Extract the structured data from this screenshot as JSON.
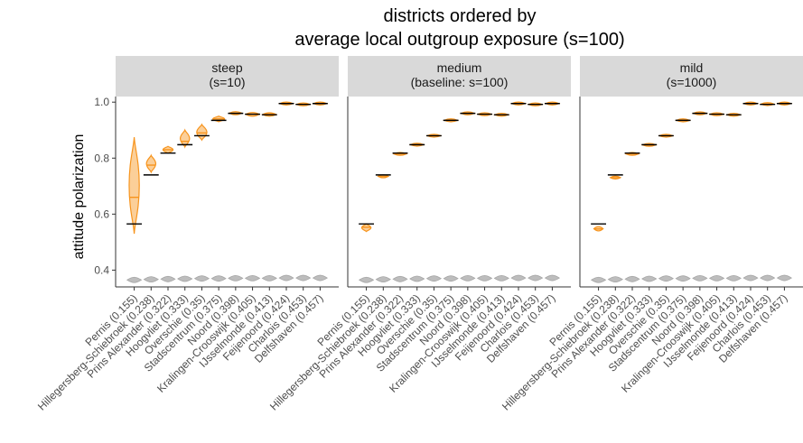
{
  "chart_data": {
    "type": "violin",
    "title": [
      "districts ordered by",
      "average local outgroup exposure (s=100)"
    ],
    "ylabel": "attitude polarization",
    "xlabel": "",
    "ylim": [
      0.34,
      1.02
    ],
    "yticks": [
      "0.4",
      "0.6",
      "0.8",
      "1.0"
    ],
    "colors": {
      "main": "#f7941d",
      "baseline": "#bdbdbd",
      "reference": "#000000",
      "strip": "#d9d9d9"
    },
    "categories": [
      "Pernis (0.155)",
      "Hillegersberg-Schiebroek (0.238)",
      "Prins Alexander (0.322)",
      "Hoogvliet (0.333)",
      "Overschie (0.35)",
      "Stadscentrum (0.375)",
      "Noord (0.398)",
      "Kralingen-Crooswijk (0.405)",
      "IJsselmonde (0.413)",
      "Feijenoord (0.424)",
      "Charlois (0.453)",
      "Delfshaven (0.457)"
    ],
    "reference": [
      0.565,
      0.74,
      0.818,
      0.848,
      0.88,
      0.935,
      0.96,
      0.957,
      0.955,
      0.995,
      0.992,
      0.995
    ],
    "baseline_violin": [
      0.365,
      0.367,
      0.368,
      0.369,
      0.37,
      0.37,
      0.371,
      0.371,
      0.371,
      0.372,
      0.372,
      0.372
    ],
    "panels": [
      {
        "strip": [
          "steep",
          "(s=10)"
        ],
        "violins": [
          {
            "median": 0.66,
            "min": 0.53,
            "max": 0.875,
            "width": 0.6
          },
          {
            "median": 0.775,
            "min": 0.75,
            "max": 0.81,
            "width": 0.55
          },
          {
            "median": 0.83,
            "min": 0.818,
            "max": 0.842,
            "width": 0.6
          },
          {
            "median": 0.86,
            "min": 0.84,
            "max": 0.9,
            "width": 0.55
          },
          {
            "median": 0.89,
            "min": 0.865,
            "max": 0.92,
            "width": 0.6
          },
          {
            "median": 0.94,
            "min": 0.93,
            "max": 0.95,
            "width": 0.7
          },
          {
            "median": 0.96,
            "min": 0.955,
            "max": 0.966,
            "width": 0.75
          },
          {
            "median": 0.957,
            "min": 0.95,
            "max": 0.963,
            "width": 0.8
          },
          {
            "median": 0.957,
            "min": 0.95,
            "max": 0.962,
            "width": 0.8
          },
          {
            "median": 0.995,
            "min": 0.992,
            "max": 0.998,
            "width": 0.8
          },
          {
            "median": 0.992,
            "min": 0.988,
            "max": 0.996,
            "width": 0.8
          },
          {
            "median": 0.995,
            "min": 0.992,
            "max": 0.998,
            "width": 0.8
          }
        ]
      },
      {
        "strip": [
          "medium",
          "(baseline: s=100)"
        ],
        "violins": [
          {
            "median": 0.553,
            "min": 0.538,
            "max": 0.565,
            "width": 0.55
          },
          {
            "median": 0.735,
            "min": 0.73,
            "max": 0.74,
            "width": 0.6
          },
          {
            "median": 0.815,
            "min": 0.812,
            "max": 0.818,
            "width": 0.75
          },
          {
            "median": 0.848,
            "min": 0.845,
            "max": 0.851,
            "width": 0.8
          },
          {
            "median": 0.88,
            "min": 0.877,
            "max": 0.883,
            "width": 0.8
          },
          {
            "median": 0.935,
            "min": 0.933,
            "max": 0.937,
            "width": 0.8
          },
          {
            "median": 0.96,
            "min": 0.958,
            "max": 0.962,
            "width": 0.8
          },
          {
            "median": 0.957,
            "min": 0.955,
            "max": 0.959,
            "width": 0.8
          },
          {
            "median": 0.955,
            "min": 0.953,
            "max": 0.957,
            "width": 0.8
          },
          {
            "median": 0.995,
            "min": 0.993,
            "max": 0.997,
            "width": 0.8
          },
          {
            "median": 0.992,
            "min": 0.99,
            "max": 0.994,
            "width": 0.8
          },
          {
            "median": 0.995,
            "min": 0.993,
            "max": 0.997,
            "width": 0.8
          }
        ]
      },
      {
        "strip": [
          "mild",
          "(s=1000)"
        ],
        "violins": [
          {
            "median": 0.547,
            "min": 0.54,
            "max": 0.555,
            "width": 0.55
          },
          {
            "median": 0.73,
            "min": 0.727,
            "max": 0.734,
            "width": 0.6
          },
          {
            "median": 0.815,
            "min": 0.812,
            "max": 0.818,
            "width": 0.75
          },
          {
            "median": 0.847,
            "min": 0.845,
            "max": 0.85,
            "width": 0.8
          },
          {
            "median": 0.88,
            "min": 0.878,
            "max": 0.882,
            "width": 0.8
          },
          {
            "median": 0.935,
            "min": 0.933,
            "max": 0.937,
            "width": 0.8
          },
          {
            "median": 0.96,
            "min": 0.958,
            "max": 0.962,
            "width": 0.8
          },
          {
            "median": 0.957,
            "min": 0.955,
            "max": 0.959,
            "width": 0.8
          },
          {
            "median": 0.955,
            "min": 0.953,
            "max": 0.957,
            "width": 0.8
          },
          {
            "median": 0.995,
            "min": 0.993,
            "max": 0.997,
            "width": 0.8
          },
          {
            "median": 0.993,
            "min": 0.991,
            "max": 0.995,
            "width": 0.8
          },
          {
            "median": 0.995,
            "min": 0.993,
            "max": 0.997,
            "width": 0.8
          }
        ]
      }
    ]
  }
}
